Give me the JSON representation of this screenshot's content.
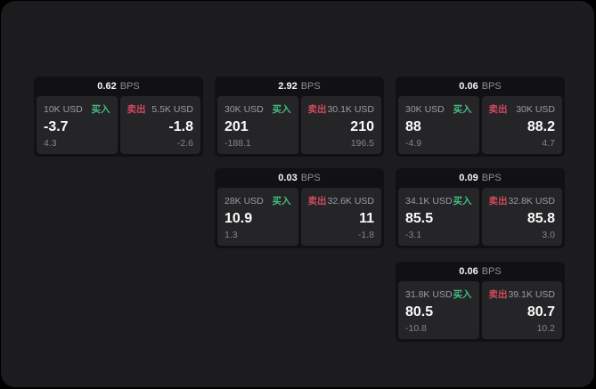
{
  "colors": {
    "buy": "#43bd7f",
    "sell": "#d04a5e",
    "window_bg": "#1c1c1e",
    "card_bg": "#111113",
    "panel_bg": "#252528"
  },
  "labels": {
    "bps_unit": "BPS",
    "buy": "买入",
    "sell": "卖出"
  },
  "cards": [
    {
      "bps": "0.62",
      "buy": {
        "amount": "10K USD",
        "price": "-3.7",
        "delta": "4.3"
      },
      "sell": {
        "amount": "5.5K USD",
        "price": "-1.8",
        "delta": "-2.6"
      }
    },
    {
      "bps": "2.92",
      "buy": {
        "amount": "30K USD",
        "price": "201",
        "delta": "-188.1"
      },
      "sell": {
        "amount": "30.1K USD",
        "price": "210",
        "delta": "196.5"
      }
    },
    {
      "bps": "0.06",
      "buy": {
        "amount": "30K USD",
        "price": "88",
        "delta": "-4.9"
      },
      "sell": {
        "amount": "30K USD",
        "price": "88.2",
        "delta": "4.7"
      }
    },
    {
      "bps": "0.03",
      "buy": {
        "amount": "28K USD",
        "price": "10.9",
        "delta": "1.3"
      },
      "sell": {
        "amount": "32.6K USD",
        "price": "11",
        "delta": "-1.8"
      }
    },
    {
      "bps": "0.09",
      "buy": {
        "amount": "34.1K USD",
        "price": "85.5",
        "delta": "-3.1"
      },
      "sell": {
        "amount": "32.8K USD",
        "price": "85.8",
        "delta": "3.0"
      }
    },
    {
      "bps": "0.06",
      "buy": {
        "amount": "31.8K USD",
        "price": "80.5",
        "delta": "-10.8"
      },
      "sell": {
        "amount": "39.1K USD",
        "price": "80.7",
        "delta": "10.2"
      }
    }
  ]
}
